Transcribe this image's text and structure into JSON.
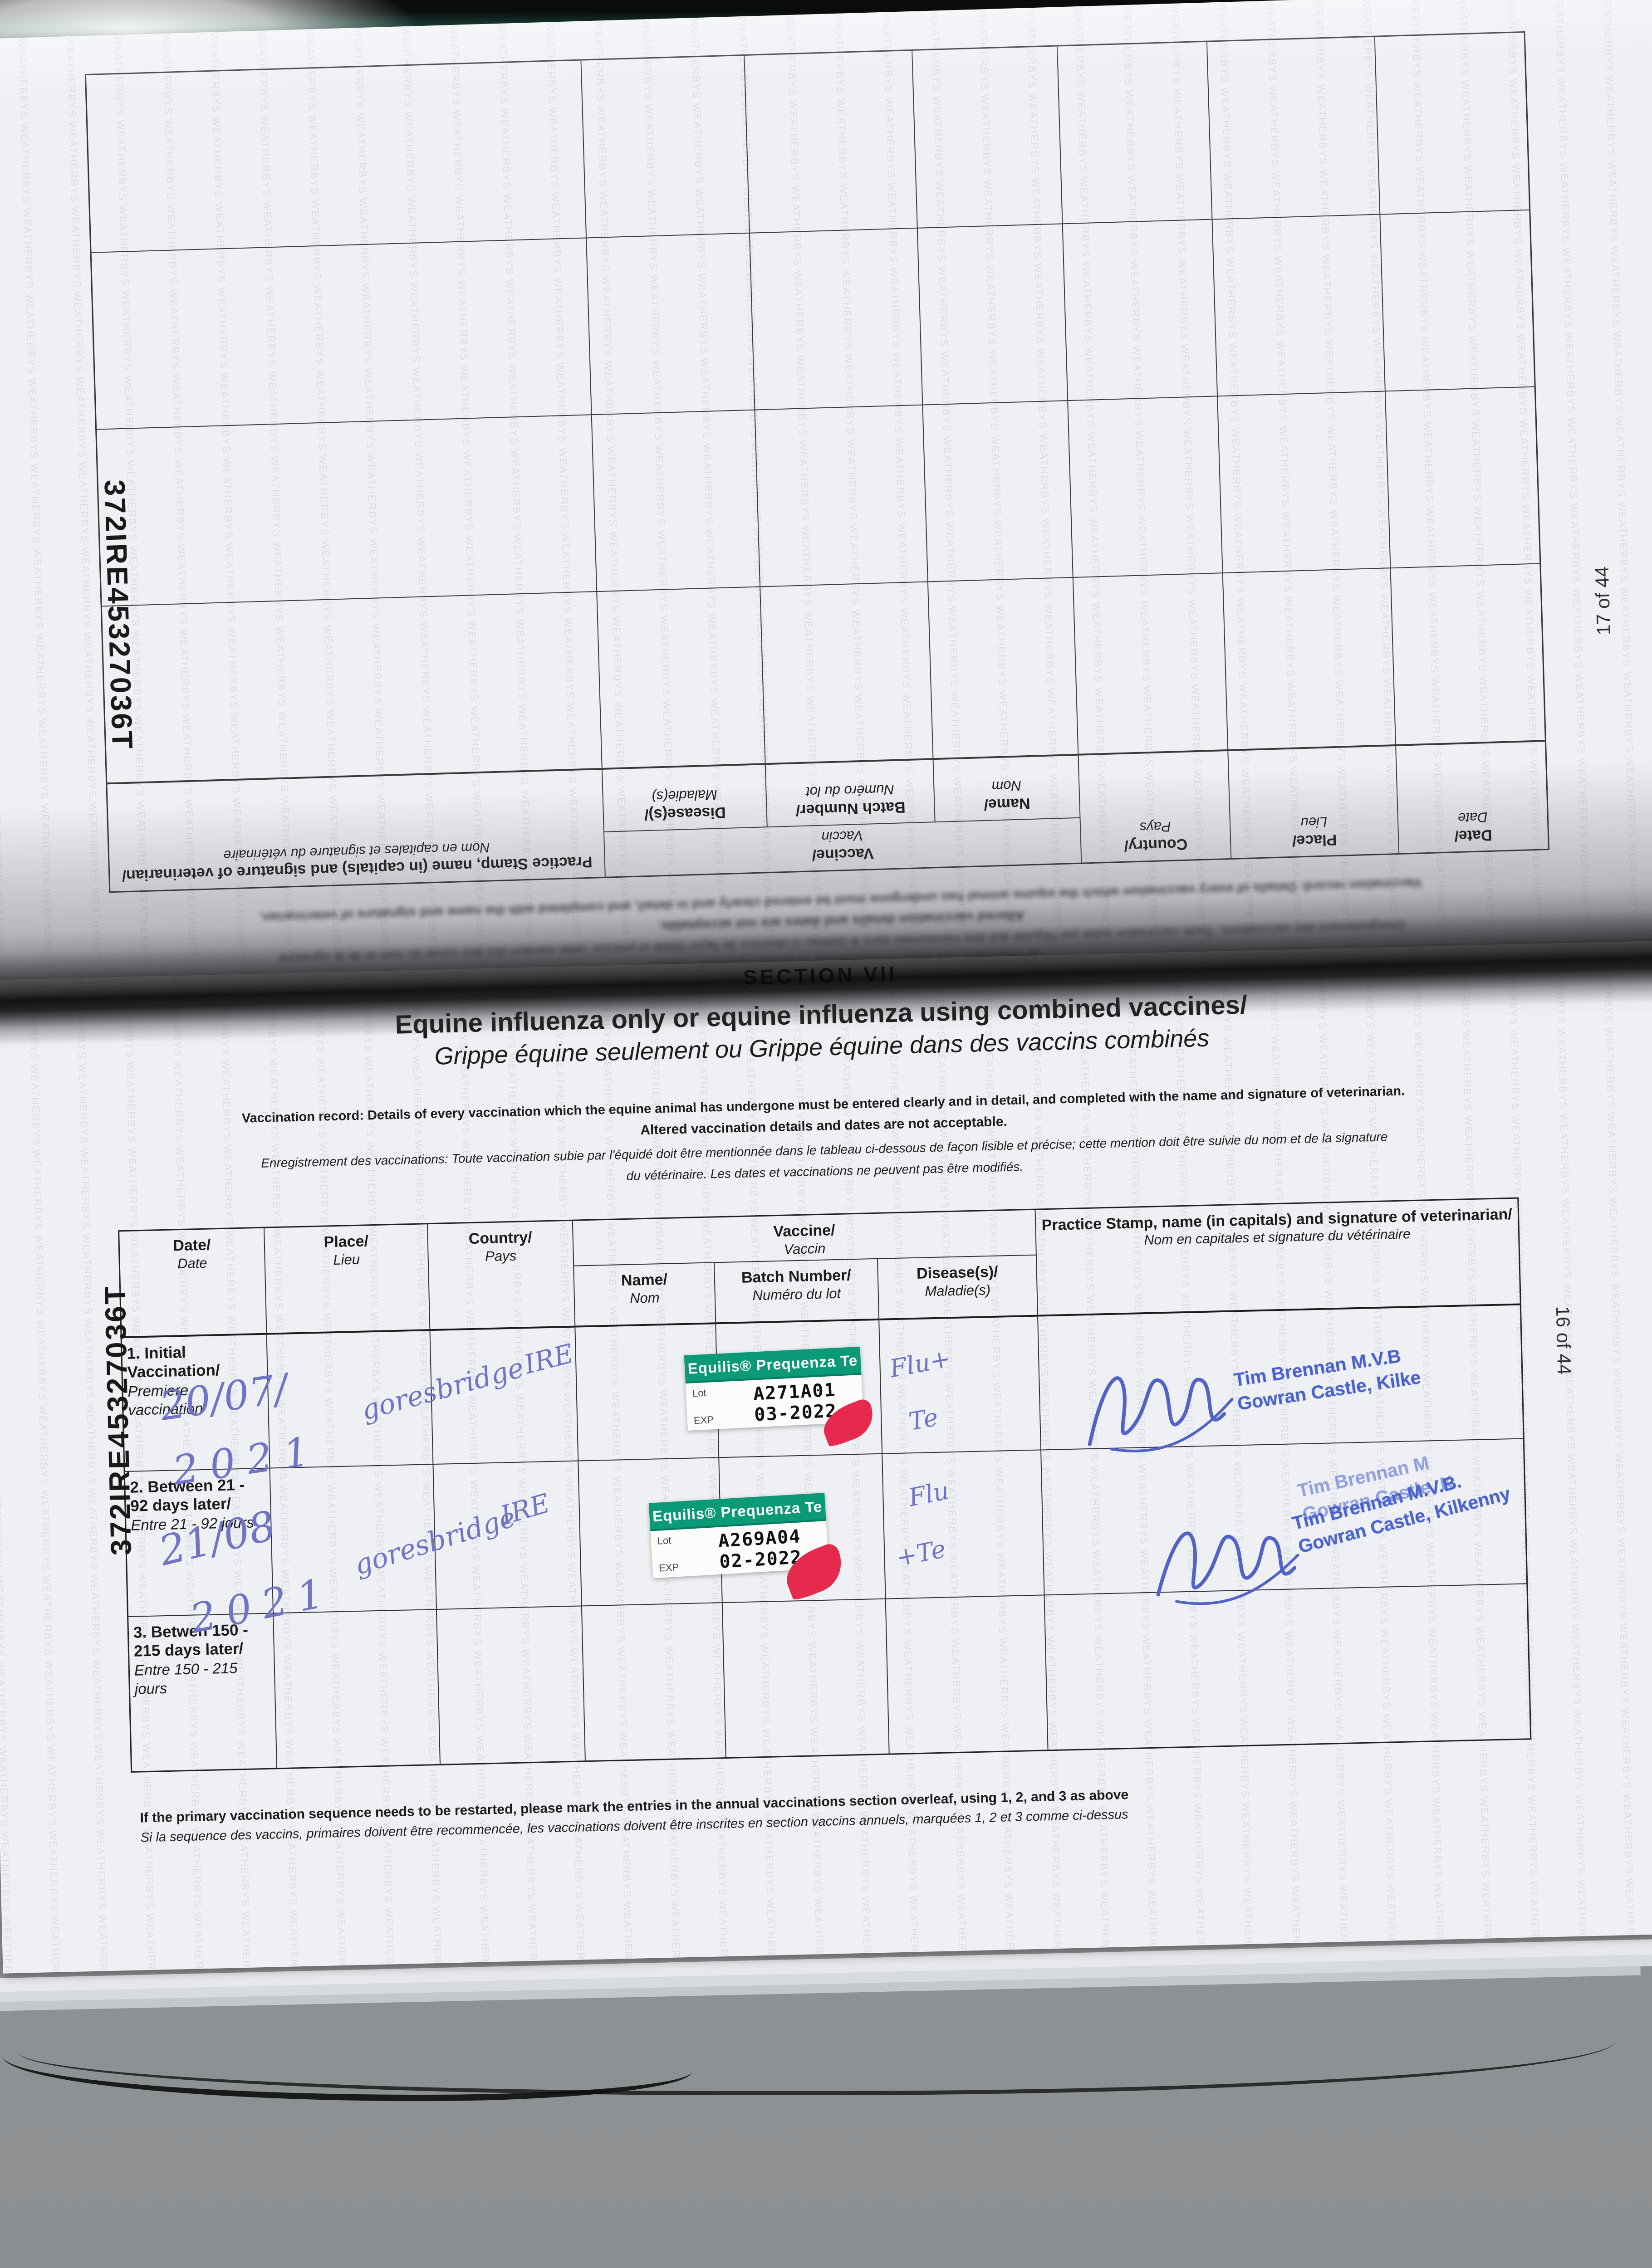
{
  "watermark": "WEATHERBYS",
  "passport_number": "372IRE45327036T",
  "colors": {
    "cover_green": "#1c4840",
    "sticker_green": "#0b9a78",
    "sticker_red": "#e62a4e",
    "ink": "#6f74c6",
    "stamp_blue": "#4a63cc"
  },
  "table_headers": {
    "date_en": "Date/",
    "date_fr": "Date",
    "place_en": "Place/",
    "place_fr": "Lieu",
    "country_en": "Country/",
    "country_fr": "Pays",
    "vaccine_en": "Vaccine/",
    "vaccine_fr": "Vaccin",
    "name_en": "Name/",
    "name_fr": "Nom",
    "batch_en": "Batch Number/",
    "batch_fr": "Numéro du lot",
    "disease_en": "Disease(s)/",
    "disease_fr": "Maladie(s)",
    "stamp_en": "Practice Stamp, name (in capitals) and signature of veterinarian/",
    "stamp_fr": "Nom en capitales et signature du vétérinaire"
  },
  "page17": {
    "page_number": "17 of 44",
    "blurred_lines": [
      "Vaccination record: Details of every vaccination which the equine animal has undergone must be entered clearly and in detail, and completed with the name and signature of veterinarian.",
      "Altered vaccination details and dates are not acceptable.",
      "Enregistrement des vaccinations: Toute vaccination subie par l'équidé doit être mentionnée dans le tableau ci-dessous de façon lisible et précise; cette mention doit être suivie du nom et de la signature",
      "du vétérinaire. Les dates et vaccinations ne peuvent pas être modifiés."
    ]
  },
  "page16": {
    "page_number": "16 of 44",
    "section_label": "SECTION VII",
    "title_en": "Equine influenza only or equine influenza using combined vaccines/",
    "title_fr": "Grippe équine seulement ou Grippe équine dans des vaccins combinés",
    "intro_bold_1": "Vaccination record: Details of every vaccination which the equine animal has undergone must be entered clearly and in detail, and completed with the name and signature of veterinarian.",
    "intro_bold_2": "Altered vaccination details and dates are not acceptable.",
    "intro_italic_1": "Enregistrement des vaccinations: Toute vaccination subie par l'équidé doit être mentionnée dans le tableau ci-dessous de façon lisible et précise; cette mention doit être suivie du nom et de la signature",
    "intro_italic_2": "du vétérinaire. Les dates et vaccinations ne peuvent pas être modifiés.",
    "footer_en": "If the primary vaccination sequence needs to be restarted, please mark the entries in the annual vaccinations section overleaf, using 1, 2, and 3 as above",
    "footer_fr": "Si la sequence des vaccins, primaires doivent être recommencée, les vaccinations doivent être inscrites en section vaccins annuels, marquées 1, 2 et 3 comme ci-dessus",
    "rows": [
      {
        "label_en": "1. Initial Vaccination/",
        "label_fr": "Premiere vaccination",
        "date_line1": "20/07/",
        "date_line2": "2021",
        "place": "goresbridge",
        "country": "IRE",
        "sticker": {
          "brand": "Equilis® Prequenza Te",
          "lot_label": "Lot",
          "lot": "A271A01",
          "exp_label": "EXP",
          "exp": "03-2022"
        },
        "disease_line1": "Flu+",
        "disease_line2": "Te",
        "stamp_line1": "Tim Brennan M.V.B",
        "stamp_line2": "Gowran Castle, Kilke"
      },
      {
        "label_en": "2. Between 21 - 92 days later/",
        "label_fr": "Entre 21 - 92 jours",
        "date_line1": "21/08",
        "date_line2": "2021",
        "place": "goresbridge",
        "country": "IRE",
        "sticker": {
          "brand": "Equilis® Prequenza Te",
          "lot_label": "Lot",
          "lot": "A269A04",
          "exp_label": "EXP",
          "exp": "02-2022"
        },
        "disease_line1": "Flu",
        "disease_line2": "+Te",
        "stamp_line1": "Tim Brennan M.V.B.",
        "stamp_line2": "Gowran Castle, Kilkenny",
        "stamp_ghost_1": "Tim Brennan M",
        "stamp_ghost_2": "Gowran Castle, K"
      },
      {
        "label_en": "3. Betwen 150 - 215 days later/",
        "label_fr": "Entre 150 - 215 jours"
      }
    ]
  }
}
